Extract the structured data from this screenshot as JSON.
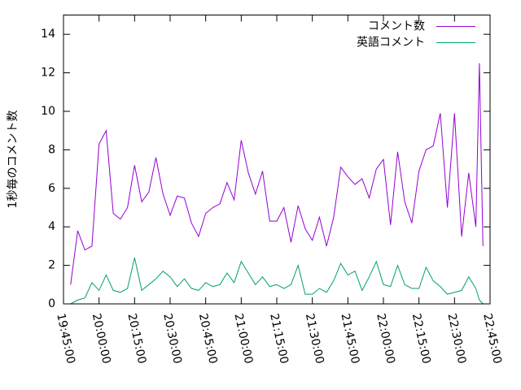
{
  "chart_data": {
    "type": "line",
    "y_label": "1秒毎のコメント数",
    "x": [
      "19:48:00",
      "19:51:00",
      "19:54:00",
      "19:57:00",
      "20:00:00",
      "20:03:00",
      "20:06:00",
      "20:09:00",
      "20:12:00",
      "20:15:00",
      "20:18:00",
      "20:21:00",
      "20:24:00",
      "20:27:00",
      "20:30:00",
      "20:33:00",
      "20:36:00",
      "20:39:00",
      "20:42:00",
      "20:45:00",
      "20:48:00",
      "20:51:00",
      "20:54:00",
      "20:57:00",
      "21:00:00",
      "21:03:00",
      "21:06:00",
      "21:09:00",
      "21:12:00",
      "21:15:00",
      "21:18:00",
      "21:21:00",
      "21:24:00",
      "21:27:00",
      "21:30:00",
      "21:33:00",
      "21:36:00",
      "21:39:00",
      "21:42:00",
      "21:45:00",
      "21:48:00",
      "21:51:00",
      "21:54:00",
      "21:57:00",
      "22:00:00",
      "22:03:00",
      "22:06:00",
      "22:09:00",
      "22:12:00",
      "22:15:00",
      "22:18:00",
      "22:21:00",
      "22:24:00",
      "22:27:00",
      "22:30:00",
      "22:33:00",
      "22:36:00",
      "22:39:00",
      "22:40:30",
      "22:42:00"
    ],
    "series": [
      {
        "name": "コメント数",
        "color": "#9400d3",
        "values": [
          1.0,
          3.8,
          2.8,
          3.0,
          8.3,
          9.0,
          4.7,
          4.4,
          5.0,
          7.2,
          5.3,
          5.8,
          7.6,
          5.7,
          4.6,
          5.6,
          5.5,
          4.2,
          3.5,
          4.7,
          5.0,
          5.2,
          6.3,
          5.4,
          8.5,
          6.8,
          5.7,
          6.9,
          4.3,
          4.3,
          5.0,
          3.2,
          5.1,
          3.9,
          3.3,
          4.5,
          3.0,
          4.5,
          7.1,
          6.6,
          6.2,
          6.5,
          5.5,
          7.0,
          7.5,
          4.1,
          7.9,
          5.3,
          4.2,
          6.9,
          8.0,
          8.2,
          9.9,
          5.0,
          9.9,
          3.5,
          6.8,
          4.0,
          12.5,
          3.0
        ]
      },
      {
        "name": "英語コメント",
        "color": "#009e73",
        "values": [
          0.0,
          0.2,
          0.3,
          1.1,
          0.7,
          1.5,
          0.7,
          0.6,
          0.8,
          2.4,
          0.7,
          1.0,
          1.3,
          1.7,
          1.4,
          0.9,
          1.3,
          0.8,
          0.7,
          1.1,
          0.9,
          1.0,
          1.6,
          1.1,
          2.2,
          1.6,
          1.0,
          1.4,
          0.9,
          1.0,
          0.8,
          1.0,
          2.0,
          0.5,
          0.5,
          0.8,
          0.6,
          1.2,
          2.1,
          1.5,
          1.7,
          0.7,
          1.4,
          2.2,
          1.0,
          0.9,
          2.0,
          1.0,
          0.8,
          0.8,
          1.9,
          1.2,
          0.9,
          0.5,
          0.6,
          0.7,
          1.4,
          0.8,
          0.2,
          0.0
        ]
      }
    ],
    "xlim": [
      "19:45:00",
      "22:45:00"
    ],
    "xticks": [
      "19:45:00",
      "20:00:00",
      "20:15:00",
      "20:30:00",
      "20:45:00",
      "21:00:00",
      "21:15:00",
      "21:30:00",
      "21:45:00",
      "22:00:00",
      "22:15:00",
      "22:30:00",
      "22:45:00"
    ],
    "ylim": [
      0,
      15
    ],
    "yticks": [
      0,
      2,
      4,
      6,
      8,
      10,
      12,
      14
    ],
    "legend": "top right",
    "grid": false
  }
}
